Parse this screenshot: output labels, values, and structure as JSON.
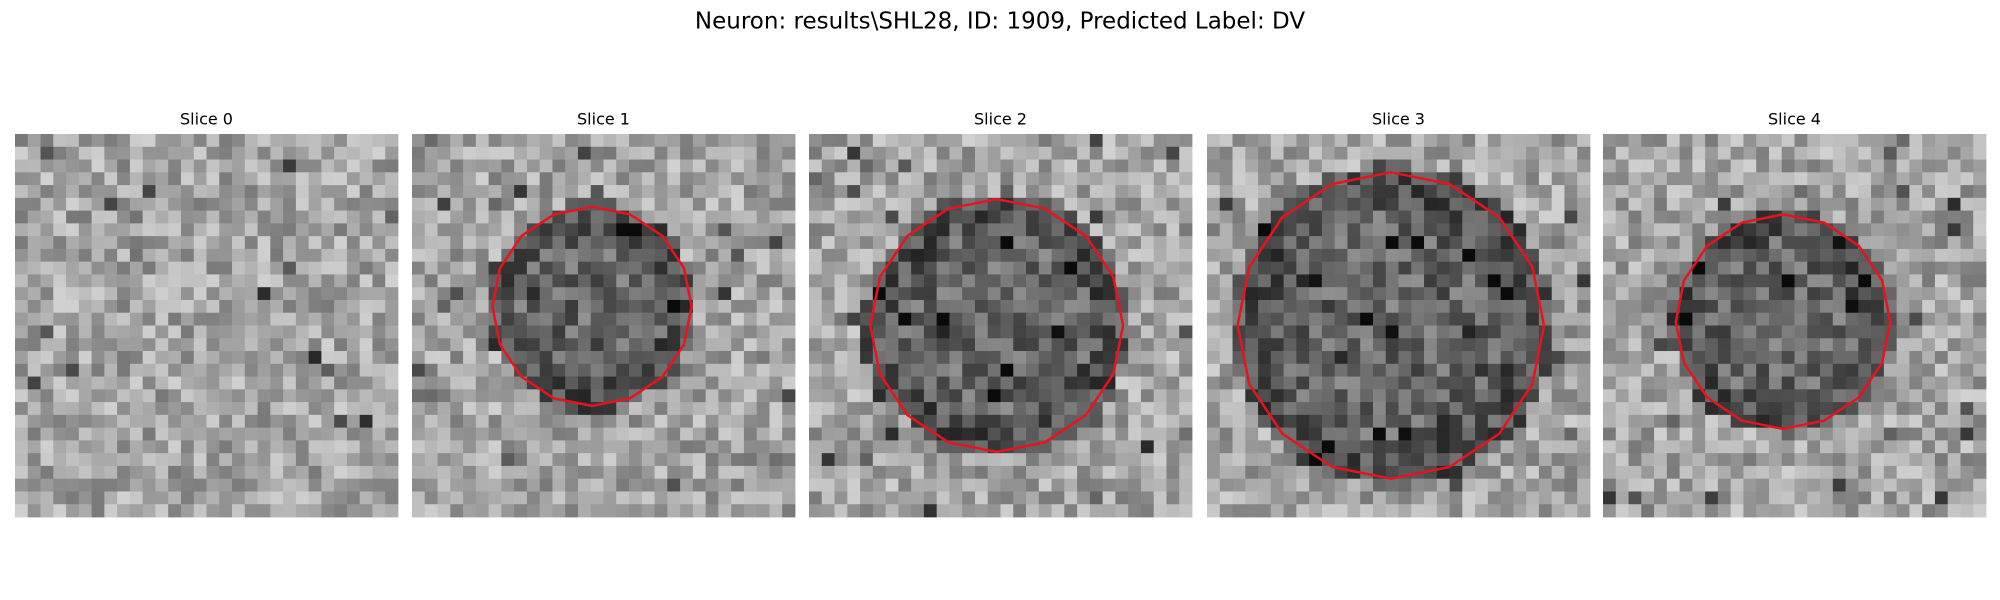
{
  "figure": {
    "title": "Neuron: results\\SHL28, ID: 1909, Predicted Label: DV",
    "panels": [
      {
        "title": "Slice 0"
      },
      {
        "title": "Slice 1"
      },
      {
        "title": "Slice 2"
      },
      {
        "title": "Slice 3"
      },
      {
        "title": "Slice 4"
      }
    ]
  }
}
